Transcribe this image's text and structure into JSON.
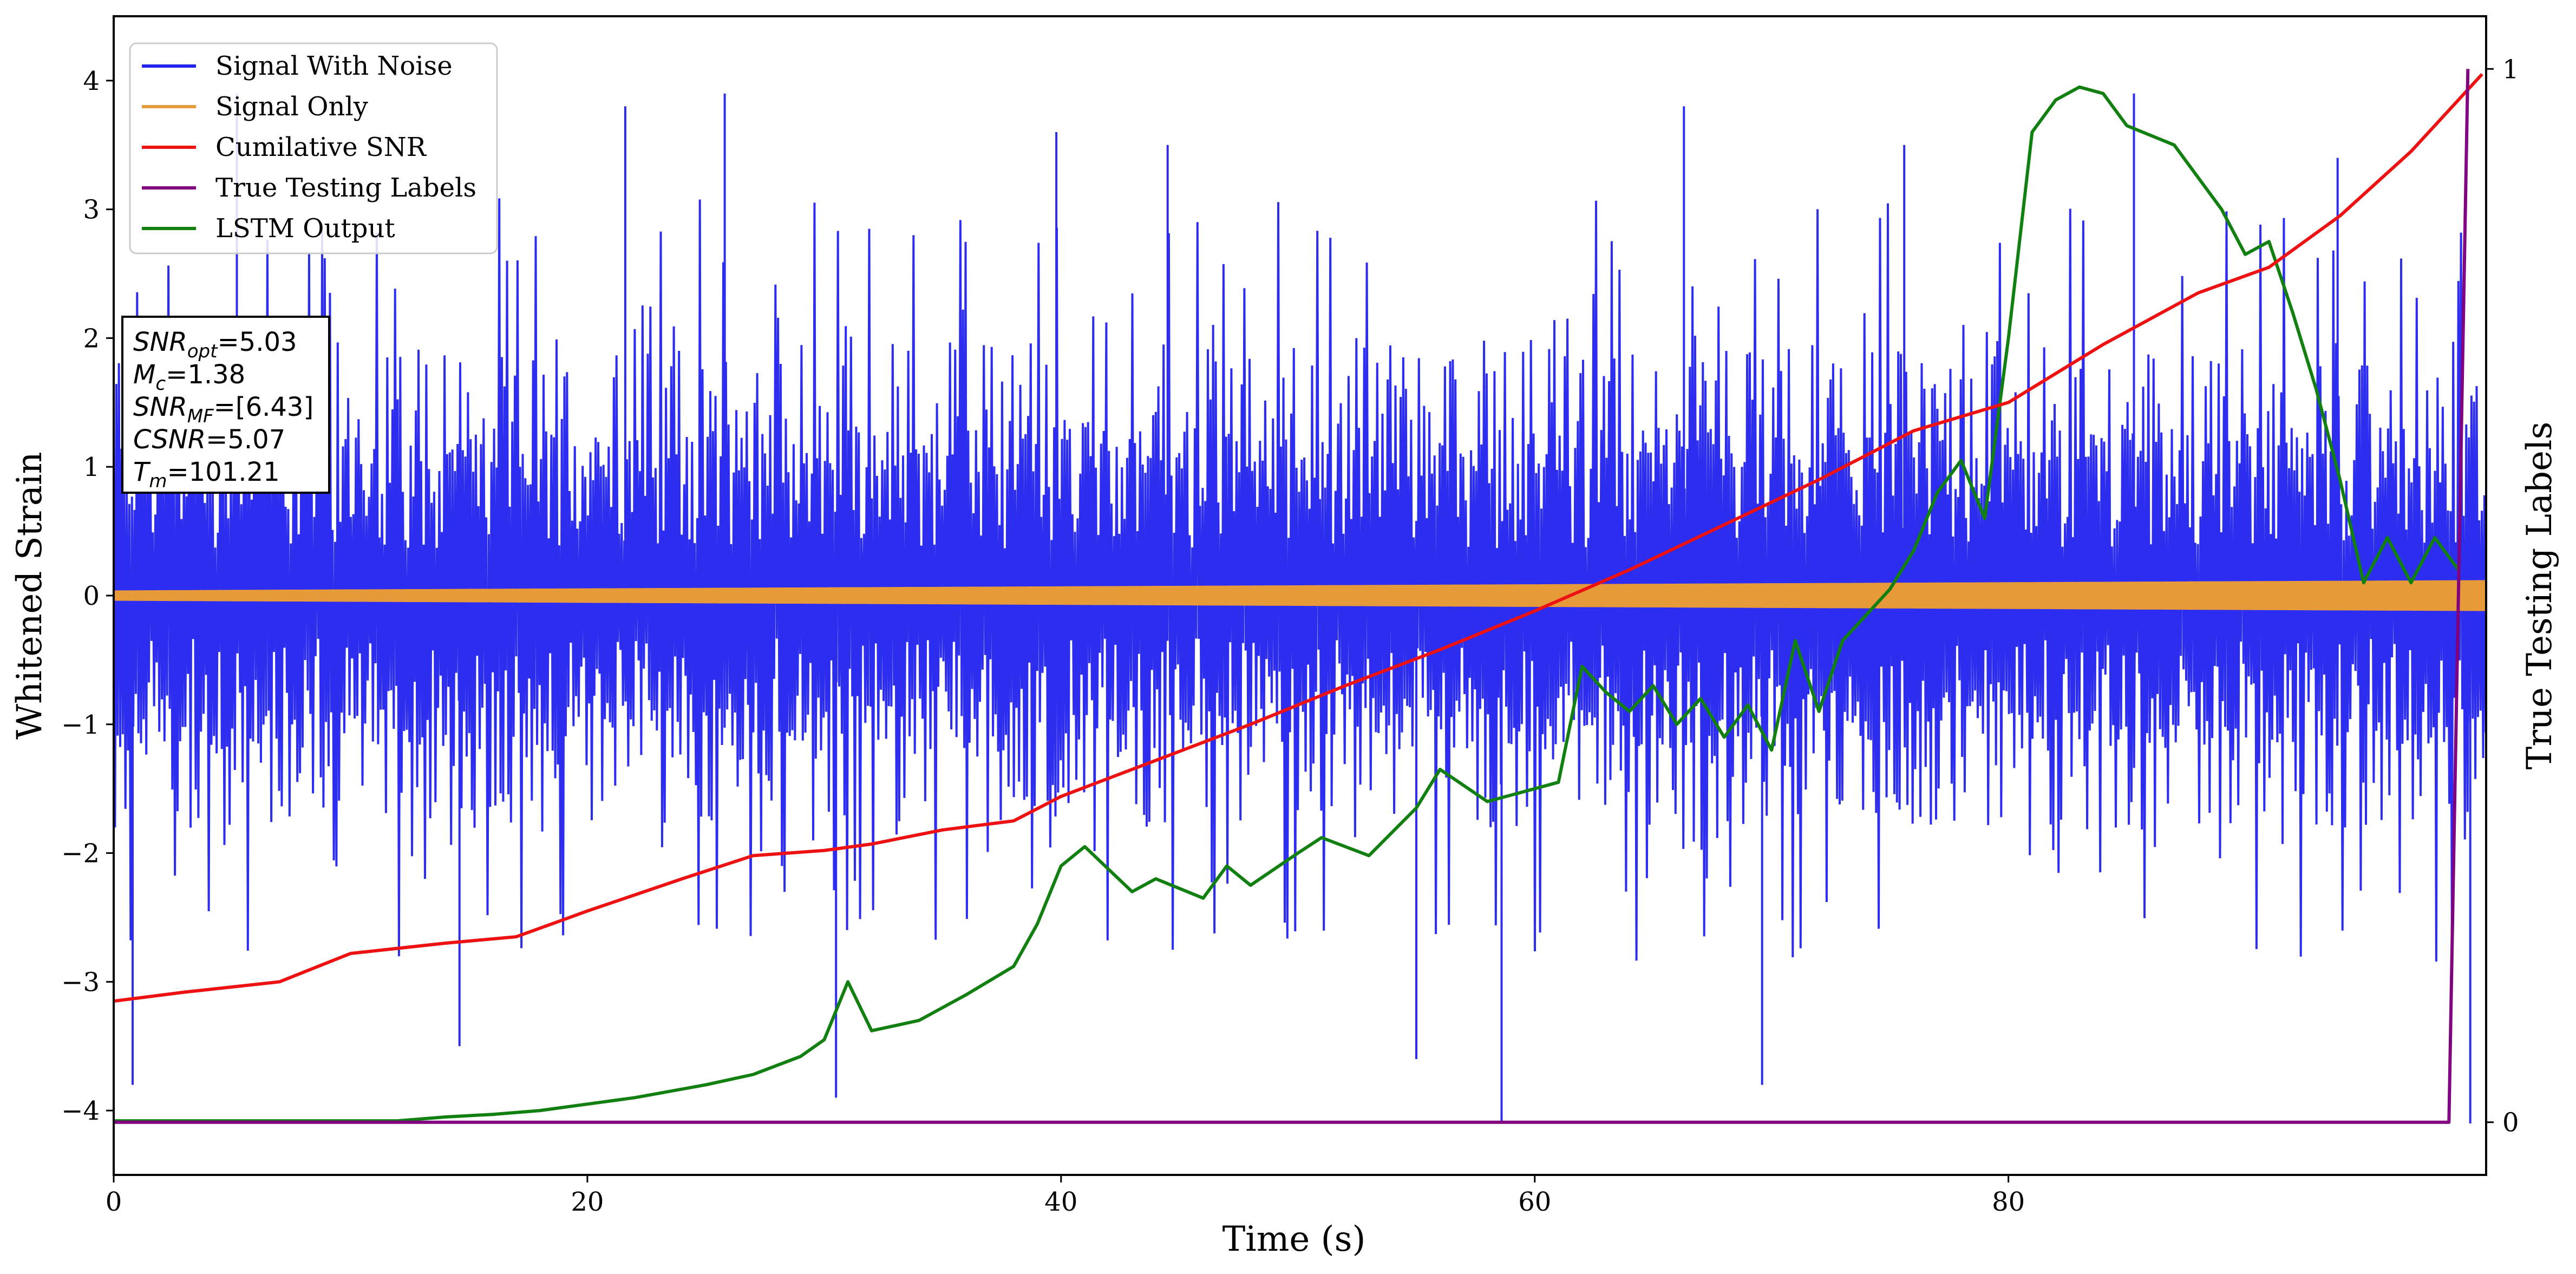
{
  "chart_data": {
    "type": "line",
    "xlabel": "Time (s)",
    "ylabel": "Whitened Strain",
    "y2label": "True Testing Labels",
    "xlim": [
      0,
      100
    ],
    "ylim": [
      -4.5,
      4.5
    ],
    "y2lim": [
      -0.05,
      1.05
    ],
    "xticks": [
      "0",
      "20",
      "40",
      "60",
      "80"
    ],
    "yticks": [
      "−4",
      "−3",
      "−2",
      "−1",
      "0",
      "1",
      "2",
      "3",
      "4"
    ],
    "y2ticks": [
      "0",
      "1"
    ],
    "legend_position": "top-left",
    "grid": false,
    "colors": {
      "signal_noise": "#2222ee",
      "signal_only": "#e69a3a",
      "cumulative_snr": "#ee1111",
      "true_labels": "#800080",
      "lstm_output": "#118011"
    },
    "series": [
      {
        "name": "Signal With Noise",
        "note_style": "dense noisy signal",
        "band_typical": [
          -1.6,
          2.2
        ],
        "spike_peaks": [
          {
            "x": 0.8,
            "y": -3.8
          },
          {
            "x": 5.2,
            "y": 3.9
          },
          {
            "x": 14.6,
            "y": -3.5
          },
          {
            "x": 21.6,
            "y": 3.8
          },
          {
            "x": 25.8,
            "y": 3.9
          },
          {
            "x": 30.5,
            "y": -3.9
          },
          {
            "x": 39.8,
            "y": 3.6
          },
          {
            "x": 44.5,
            "y": 3.5
          },
          {
            "x": 55.0,
            "y": -3.6
          },
          {
            "x": 58.6,
            "y": -4.1
          },
          {
            "x": 66.3,
            "y": 3.8
          },
          {
            "x": 69.6,
            "y": -3.8
          },
          {
            "x": 75.6,
            "y": 3.5
          },
          {
            "x": 85.3,
            "y": 3.9
          },
          {
            "x": 93.9,
            "y": 3.4
          },
          {
            "x": 99.5,
            "y": -4.1
          }
        ]
      },
      {
        "name": "Signal Only",
        "amplitude_start": 0.04,
        "amplitude_end": 0.12
      },
      {
        "name": "Cumilative SNR",
        "x": [
          0,
          3,
          7,
          10,
          14,
          17,
          20,
          24,
          27,
          30,
          32,
          35,
          38,
          40,
          44,
          48,
          52,
          56,
          60,
          64,
          68,
          72,
          76,
          80,
          84,
          86,
          88,
          91,
          94,
          97,
          100
        ],
        "y": [
          -3.15,
          -3.08,
          -3.0,
          -2.78,
          -2.7,
          -2.65,
          -2.45,
          -2.2,
          -2.02,
          -1.98,
          -1.93,
          -1.82,
          -1.75,
          -1.56,
          -1.28,
          -1.0,
          -0.7,
          -0.42,
          -0.12,
          0.2,
          0.55,
          0.9,
          1.28,
          1.5,
          1.95,
          2.15,
          2.35,
          2.55,
          2.95,
          3.45,
          4.05
        ]
      },
      {
        "name": "True Testing Labels",
        "axis": "right",
        "x": [
          0,
          98.6,
          99.4
        ],
        "y": [
          0,
          0,
          1
        ]
      },
      {
        "name": "LSTM Output",
        "x": [
          0,
          12,
          14,
          16,
          18,
          20,
          22,
          25,
          27,
          29,
          30,
          31,
          32,
          34,
          36,
          38,
          39,
          40,
          41,
          43,
          44,
          46,
          47,
          48,
          50,
          51,
          53,
          55,
          56,
          58,
          60,
          61,
          62,
          63,
          64,
          65,
          66,
          67,
          68,
          69,
          70,
          71,
          72,
          73,
          74,
          75,
          76,
          77,
          78,
          79,
          80,
          81,
          82,
          83,
          84,
          85,
          87,
          89,
          90,
          91,
          92,
          93,
          94,
          95,
          96,
          97,
          98,
          99
        ],
        "y": [
          -4.08,
          -4.08,
          -4.05,
          -4.03,
          -4.0,
          -3.95,
          -3.9,
          -3.8,
          -3.72,
          -3.58,
          -3.45,
          -3.0,
          -3.38,
          -3.3,
          -3.1,
          -2.88,
          -2.55,
          -2.1,
          -1.95,
          -2.3,
          -2.2,
          -2.35,
          -2.1,
          -2.25,
          -2.0,
          -1.88,
          -2.02,
          -1.65,
          -1.35,
          -1.6,
          -1.5,
          -1.45,
          -0.55,
          -0.75,
          -0.9,
          -0.7,
          -1.0,
          -0.8,
          -1.1,
          -0.85,
          -1.2,
          -0.35,
          -0.9,
          -0.35,
          -0.15,
          0.05,
          0.35,
          0.8,
          1.05,
          0.6,
          2.0,
          3.6,
          3.85,
          3.95,
          3.9,
          3.65,
          3.5,
          3.0,
          2.65,
          2.75,
          2.2,
          1.6,
          0.9,
          0.1,
          0.45,
          0.1,
          0.45,
          0.2
        ]
      }
    ],
    "annotation_box": [
      {
        "base": "SNR",
        "sub": "opt",
        "value": "=5.03"
      },
      {
        "base": "M",
        "sub": "c",
        "value": "=1.38"
      },
      {
        "base": "SNR",
        "sub": "MF",
        "value": "=[6.43]"
      },
      {
        "base": "CSNR",
        "sub": "",
        "value": "=5.07"
      },
      {
        "base": "T",
        "sub": "m",
        "value": "=101.21"
      }
    ]
  }
}
